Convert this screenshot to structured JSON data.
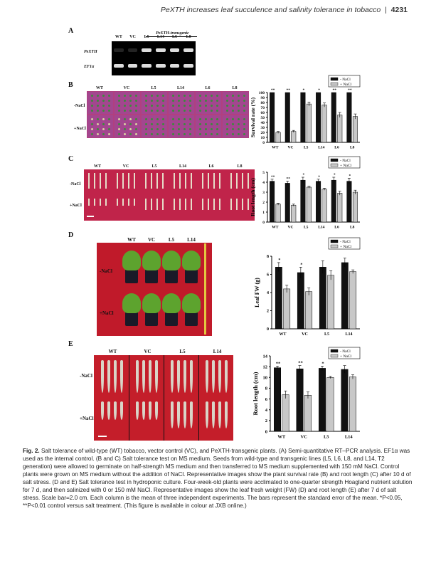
{
  "header": {
    "title": "PeXTH increases leaf succulence and salinity tolerance in tobacco",
    "page": "4231"
  },
  "panelA": {
    "letter": "A",
    "group_label": "PeXTH-transgenic",
    "columns": [
      "WT",
      "VC",
      "L5",
      "L14",
      "L6",
      "L8"
    ],
    "rows": [
      "PeXTH",
      "EF1α"
    ]
  },
  "panelB": {
    "letter": "B",
    "columns": [
      "WT",
      "VC",
      "L5",
      "L14",
      "L6",
      "L8"
    ],
    "rows": [
      "-NaCl",
      "+NaCl"
    ]
  },
  "panelC": {
    "letter": "C",
    "columns": [
      "WT",
      "VC",
      "L5",
      "L14",
      "L6",
      "L8"
    ],
    "rows": [
      "-NaCl",
      "+NaCl"
    ]
  },
  "panelD": {
    "letter": "D",
    "columns": [
      "WT",
      "VC",
      "L5",
      "L14"
    ],
    "rows": [
      "-NaCl",
      "+NaCl"
    ]
  },
  "panelE": {
    "letter": "E",
    "columns": [
      "WT",
      "VC",
      "L5",
      "L14"
    ],
    "rows": [
      "-NaCl",
      "+NaCl"
    ]
  },
  "chart_data": [
    {
      "type": "bar",
      "panel": "B",
      "ylabel": "Survival rate (%)",
      "categories": [
        "WT",
        "VC",
        "L5",
        "L14",
        "L6",
        "L8"
      ],
      "ylim": [
        0,
        100
      ],
      "yticks": [
        0,
        10,
        20,
        30,
        40,
        50,
        60,
        70,
        80,
        90,
        100
      ],
      "series": [
        {
          "name": "- NaCl",
          "color": "#111111",
          "values": [
            100,
            100,
            100,
            100,
            100,
            100
          ],
          "errors": [
            0,
            0,
            0,
            0,
            0,
            0
          ]
        },
        {
          "name": "+ NaCl",
          "color": "#c8c8c8",
          "values": [
            20,
            22,
            77,
            75,
            55,
            52
          ],
          "errors": [
            2,
            2,
            4,
            4,
            5,
            5
          ]
        }
      ],
      "annotations": [
        "**",
        "**",
        "*",
        "*",
        "**",
        "**"
      ],
      "legend": "top-right"
    },
    {
      "type": "bar",
      "panel": "C",
      "ylabel": "Root length (cm)",
      "categories": [
        "WT",
        "VC",
        "L5",
        "L14",
        "L6",
        "L8"
      ],
      "ylim": [
        0,
        5
      ],
      "yticks": [
        0,
        1,
        2,
        3,
        4,
        5
      ],
      "series": [
        {
          "name": "- NaCl",
          "color": "#111111",
          "values": [
            4.1,
            3.9,
            4.2,
            4.1,
            4.2,
            4.1
          ],
          "errors": [
            0.2,
            0.2,
            0.3,
            0.2,
            0.3,
            0.3
          ]
        },
        {
          "name": "+ NaCl",
          "color": "#c8c8c8",
          "values": [
            1.8,
            1.7,
            3.5,
            3.3,
            2.9,
            3.0
          ],
          "errors": [
            0.1,
            0.1,
            0.1,
            0.1,
            0.2,
            0.2
          ]
        }
      ],
      "annotations": [
        "**",
        "**",
        "*",
        "*",
        "*",
        "*"
      ],
      "legend": "top-right"
    },
    {
      "type": "bar",
      "panel": "D",
      "ylabel": "Leaf FW (g)",
      "categories": [
        "WT",
        "VC",
        "L5",
        "L14"
      ],
      "ylim": [
        0,
        8
      ],
      "yticks": [
        0,
        2,
        4,
        6,
        8
      ],
      "series": [
        {
          "name": "- NaCl",
          "color": "#111111",
          "values": [
            6.8,
            6.2,
            6.8,
            7.3
          ],
          "errors": [
            0.5,
            0.6,
            0.7,
            0.5
          ]
        },
        {
          "name": "+ NaCl",
          "color": "#c8c8c8",
          "values": [
            4.4,
            4.1,
            5.9,
            6.3
          ],
          "errors": [
            0.4,
            0.4,
            0.5,
            0.2
          ]
        }
      ],
      "annotations": [
        "*",
        "*",
        "",
        ""
      ],
      "legend": "top-right"
    },
    {
      "type": "bar",
      "panel": "E",
      "ylabel": "Root length (cm)",
      "categories": [
        "WT",
        "VC",
        "L5",
        "L14"
      ],
      "ylim": [
        0,
        14
      ],
      "yticks": [
        0,
        2,
        4,
        6,
        8,
        10,
        12,
        14
      ],
      "series": [
        {
          "name": "- NaCl",
          "color": "#111111",
          "values": [
            11.8,
            11.6,
            11.7,
            11.5
          ],
          "errors": [
            0.3,
            0.6,
            0.4,
            0.7
          ]
        },
        {
          "name": "+ NaCl",
          "color": "#c8c8c8",
          "values": [
            6.8,
            6.7,
            10.0,
            10.1
          ],
          "errors": [
            0.7,
            0.6,
            0.2,
            0.4
          ]
        }
      ],
      "annotations": [
        "**",
        "**",
        "*",
        ""
      ],
      "legend": "top-right"
    }
  ],
  "caption": {
    "label": "Fig. 2.",
    "text": "Salt tolerance of wild-type (WT) tobacco, vector control (VC), and PeXTH-transgenic plants. (A) Semi-quantitative RT–PCR analysis. EF1α was used as the internal control. (B and C) Salt tolerance test on MS medium. Seeds from wild-type and transgenic lines (L5, L6, L8, and L14, T2 generation) were allowed to germinate on half-strength MS medium and then transferred to MS medium supplemented with 150 mM NaCl. Control plants were grown on MS medium without the addition of NaCl. Representative images show the plant survival rate (B) and root length (C) after 10 d of salt stress. (D and E) Salt tolerance test in hydroponic culture. Four-week-old plants were acclimated to one-quarter strength Hoagland nutrient solution for 7 d, and then salinized with 0 or 150 mM NaCl. Representative images show the leaf fresh weight (FW) (D) and root length (E) after 7 d of salt stress. Scale bar=2.0 cm. Each column is the mean of three independent experiments. The bars represent the standard error of the mean. *P<0.05, **P<0.01 control versus salt treatment. (This figure is available in colour at JXB online.)"
  }
}
